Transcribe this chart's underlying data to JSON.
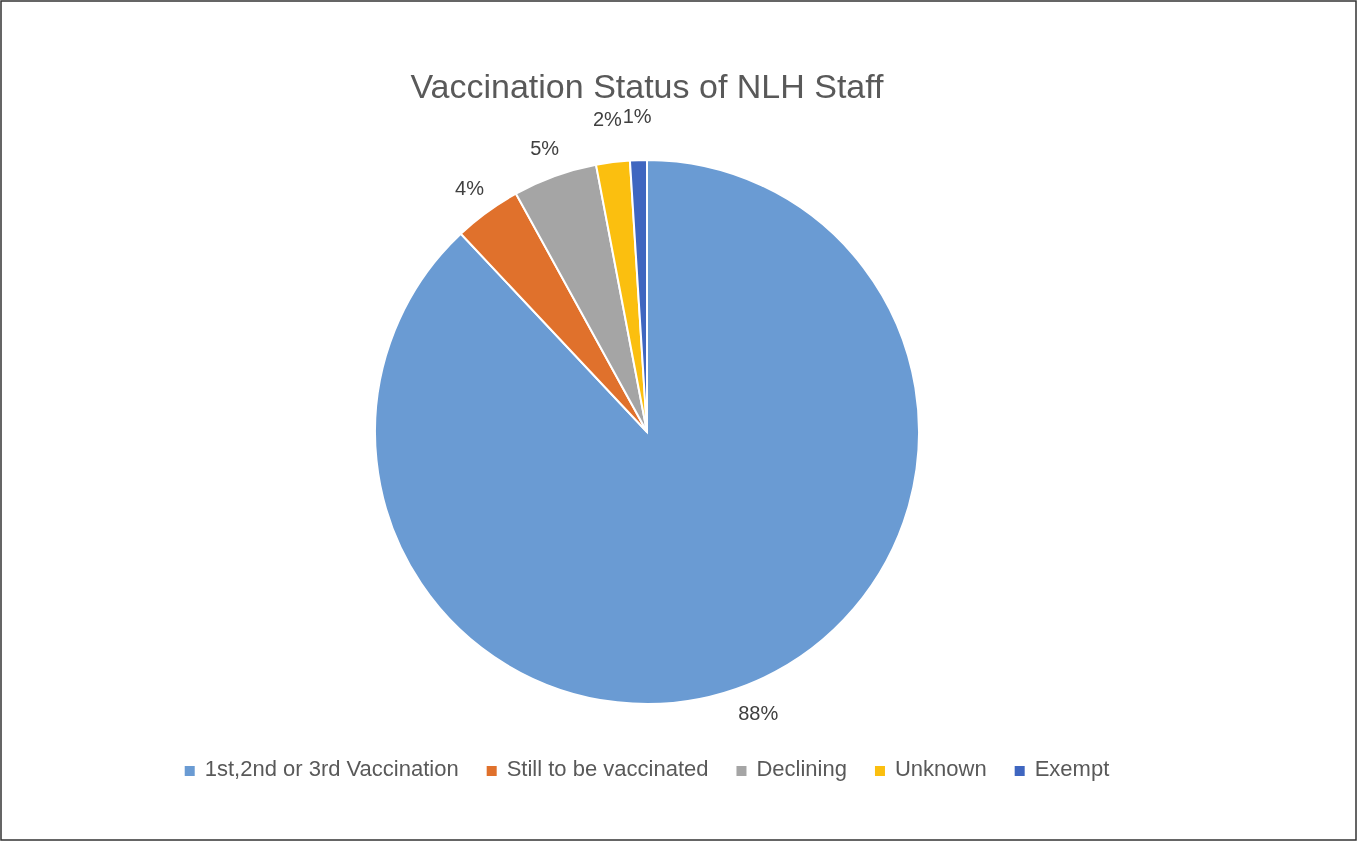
{
  "chart_data": {
    "type": "pie",
    "title": "Vaccination Status of NLH Staff",
    "categories": [
      "1st,2nd or 3rd Vaccination",
      "Still to be vaccinated",
      "Declining",
      "Unknown",
      "Exempt"
    ],
    "values": [
      88,
      4,
      5,
      2,
      1
    ],
    "colors": [
      "#6a9bd3",
      "#e0712c",
      "#a5a5a5",
      "#fbbf0f",
      "#3f66c0"
    ],
    "value_labels": [
      "88%",
      "4%",
      "5%",
      "2%",
      "1%"
    ],
    "legend": "bottom"
  }
}
